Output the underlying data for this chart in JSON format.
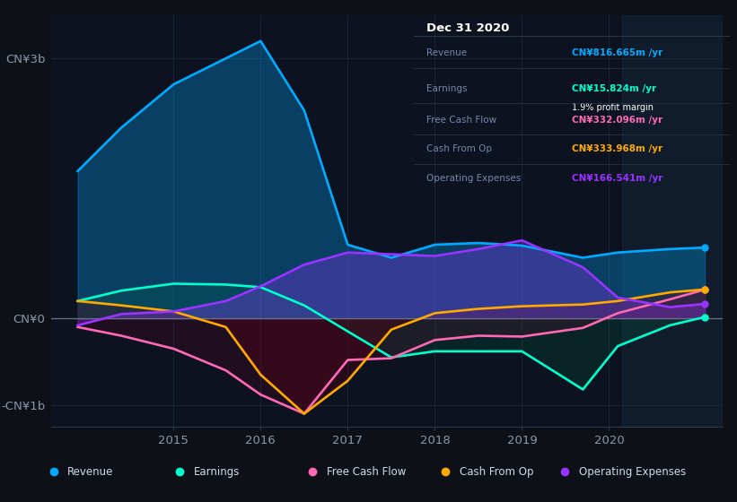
{
  "bg_color": "#0d1117",
  "panel_bg": "#0c1220",
  "info_bg": "#050a10",
  "legend_bg": "#0c1220",
  "zero_line_color": "#6b7280",
  "grid_color": "#1a2535",
  "revenue_color": "#00aaff",
  "earnings_color": "#00ffcc",
  "fcf_color": "#ff69b4",
  "cfo_color": "#ffaa00",
  "opex_color": "#9933ff",
  "tick_color": "#8899aa",
  "gray_text": "#7788aa",
  "white_text": "#ffffff",
  "border_color": "#2a3a4a",
  "xlim": [
    2013.6,
    2021.3
  ],
  "ylim_low": -1250,
  "ylim_high": 3500,
  "xticks": [
    2015,
    2016,
    2017,
    2018,
    2019,
    2020
  ],
  "ytick_positions": [
    -1000,
    0,
    3000
  ],
  "ytick_labels": [
    "-CN¥1b",
    "CN¥0",
    "CN¥3b"
  ],
  "x_data": [
    2013.9,
    2014.4,
    2015.0,
    2015.6,
    2016.0,
    2016.5,
    2017.0,
    2017.5,
    2018.0,
    2018.5,
    2019.0,
    2019.7,
    2020.1,
    2020.7,
    2021.1
  ],
  "revenue": [
    1700,
    2200,
    2700,
    3000,
    3200,
    2400,
    850,
    700,
    850,
    870,
    840,
    700,
    760,
    800,
    817
  ],
  "earnings": [
    200,
    320,
    400,
    390,
    360,
    150,
    -150,
    -450,
    -380,
    -380,
    -380,
    -820,
    -320,
    -80,
    16
  ],
  "fcf": [
    -100,
    -200,
    -350,
    -600,
    -880,
    -1100,
    -480,
    -460,
    -250,
    -200,
    -210,
    -110,
    60,
    220,
    332
  ],
  "cfo": [
    200,
    150,
    80,
    -100,
    -650,
    -1100,
    -720,
    -130,
    60,
    110,
    140,
    160,
    200,
    300,
    334
  ],
  "opex": [
    -80,
    50,
    80,
    200,
    370,
    620,
    760,
    740,
    720,
    800,
    900,
    590,
    240,
    130,
    167
  ],
  "info_title": "Dec 31 2020",
  "info_rows": [
    {
      "label": "Revenue",
      "value": "CN¥816.665m /yr",
      "color_key": "revenue_color",
      "extra": null
    },
    {
      "label": "Earnings",
      "value": "CN¥15.824m /yr",
      "color_key": "earnings_color",
      "extra": "1.9% profit margin"
    },
    {
      "label": "Free Cash Flow",
      "value": "CN¥332.096m /yr",
      "color_key": "fcf_color",
      "extra": null
    },
    {
      "label": "Cash From Op",
      "value": "CN¥333.968m /yr",
      "color_key": "cfo_color",
      "extra": null
    },
    {
      "label": "Operating Expenses",
      "value": "CN¥166.541m /yr",
      "color_key": "opex_color",
      "extra": null
    }
  ],
  "legend_items": [
    {
      "label": "Revenue",
      "color_key": "revenue_color"
    },
    {
      "label": "Earnings",
      "color_key": "earnings_color"
    },
    {
      "label": "Free Cash Flow",
      "color_key": "fcf_color"
    },
    {
      "label": "Cash From Op",
      "color_key": "cfo_color"
    },
    {
      "label": "Operating Expenses",
      "color_key": "opex_color"
    }
  ]
}
